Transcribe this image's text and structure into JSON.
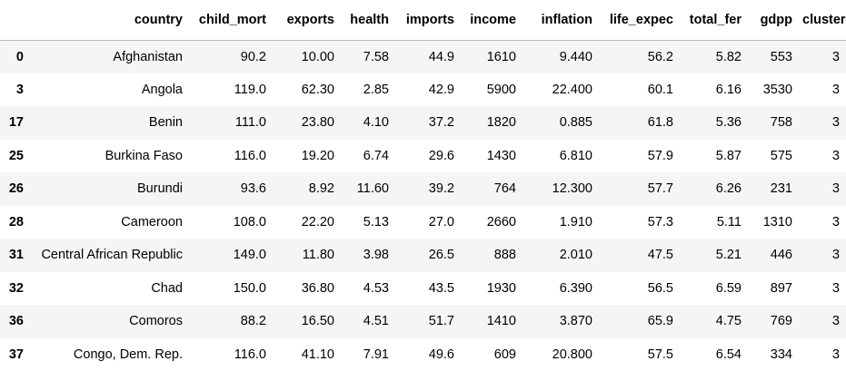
{
  "table": {
    "columns": [
      "",
      "country",
      "child_mort",
      "exports",
      "health",
      "imports",
      "income",
      "inflation",
      "life_expec",
      "total_fer",
      "gdpp",
      "cluster"
    ],
    "rows": [
      {
        "index": "0",
        "cells": [
          "Afghanistan",
          "90.2",
          "10.00",
          "7.58",
          "44.9",
          "1610",
          "9.440",
          "56.2",
          "5.82",
          "553",
          "3"
        ]
      },
      {
        "index": "3",
        "cells": [
          "Angola",
          "119.0",
          "62.30",
          "2.85",
          "42.9",
          "5900",
          "22.400",
          "60.1",
          "6.16",
          "3530",
          "3"
        ]
      },
      {
        "index": "17",
        "cells": [
          "Benin",
          "111.0",
          "23.80",
          "4.10",
          "37.2",
          "1820",
          "0.885",
          "61.8",
          "5.36",
          "758",
          "3"
        ]
      },
      {
        "index": "25",
        "cells": [
          "Burkina Faso",
          "116.0",
          "19.20",
          "6.74",
          "29.6",
          "1430",
          "6.810",
          "57.9",
          "5.87",
          "575",
          "3"
        ]
      },
      {
        "index": "26",
        "cells": [
          "Burundi",
          "93.6",
          "8.92",
          "11.60",
          "39.2",
          "764",
          "12.300",
          "57.7",
          "6.26",
          "231",
          "3"
        ]
      },
      {
        "index": "28",
        "cells": [
          "Cameroon",
          "108.0",
          "22.20",
          "5.13",
          "27.0",
          "2660",
          "1.910",
          "57.3",
          "5.11",
          "1310",
          "3"
        ]
      },
      {
        "index": "31",
        "cells": [
          "Central African Republic",
          "149.0",
          "11.80",
          "3.98",
          "26.5",
          "888",
          "2.010",
          "47.5",
          "5.21",
          "446",
          "3"
        ]
      },
      {
        "index": "32",
        "cells": [
          "Chad",
          "150.0",
          "36.80",
          "4.53",
          "43.5",
          "1930",
          "6.390",
          "56.5",
          "6.59",
          "897",
          "3"
        ]
      },
      {
        "index": "36",
        "cells": [
          "Comoros",
          "88.2",
          "16.50",
          "4.51",
          "51.7",
          "1410",
          "3.870",
          "65.9",
          "4.75",
          "769",
          "3"
        ]
      },
      {
        "index": "37",
        "cells": [
          "Congo, Dem. Rep.",
          "116.0",
          "41.10",
          "7.91",
          "49.6",
          "609",
          "20.800",
          "57.5",
          "6.54",
          "334",
          "3"
        ]
      }
    ]
  }
}
